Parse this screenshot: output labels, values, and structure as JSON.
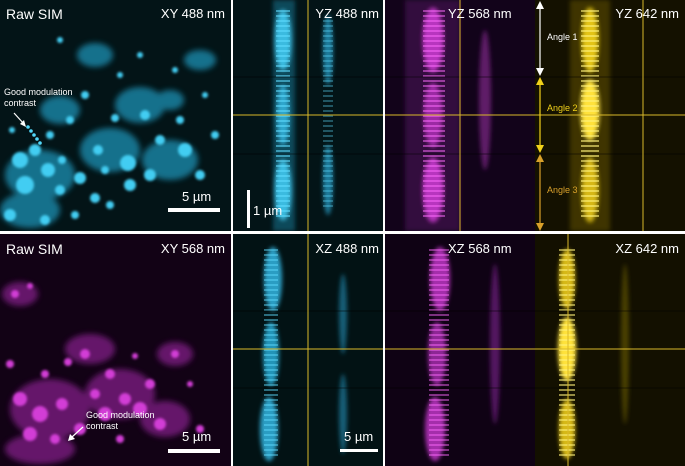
{
  "colors": {
    "cyan": "#3ec8f0",
    "magenta": "#d23cd6",
    "yellow": "#f2d21a",
    "guide_line": "#d9b92a",
    "white_arrow": "#ffffff",
    "angle2_text": "#f2d21a",
    "angle3_text": "#d9a12a"
  },
  "top_row": {
    "raw_label": "Raw SIM",
    "xy_label": "XY 488 nm",
    "note": "Good modulation contrast",
    "scalebar_h": "5 µm",
    "yz488_label": "YZ 488 nm",
    "scalebar_v": "1 µm",
    "yz568_label": "YZ 568 nm",
    "yz642_label": "YZ 642 nm",
    "angles": [
      "Angle 1",
      "Angle 2",
      "Angle 3"
    ]
  },
  "bottom_row": {
    "raw_label": "Raw SIM",
    "xy_label": "XY 568 nm",
    "note": "Good modulation contrast",
    "scalebar_h": "5 µm",
    "xz488_label": "XZ 488 nm",
    "scalebar_xz": "5 µm",
    "xz568_label": "XZ 568 nm",
    "xz642_label": "XZ 642 nm"
  }
}
